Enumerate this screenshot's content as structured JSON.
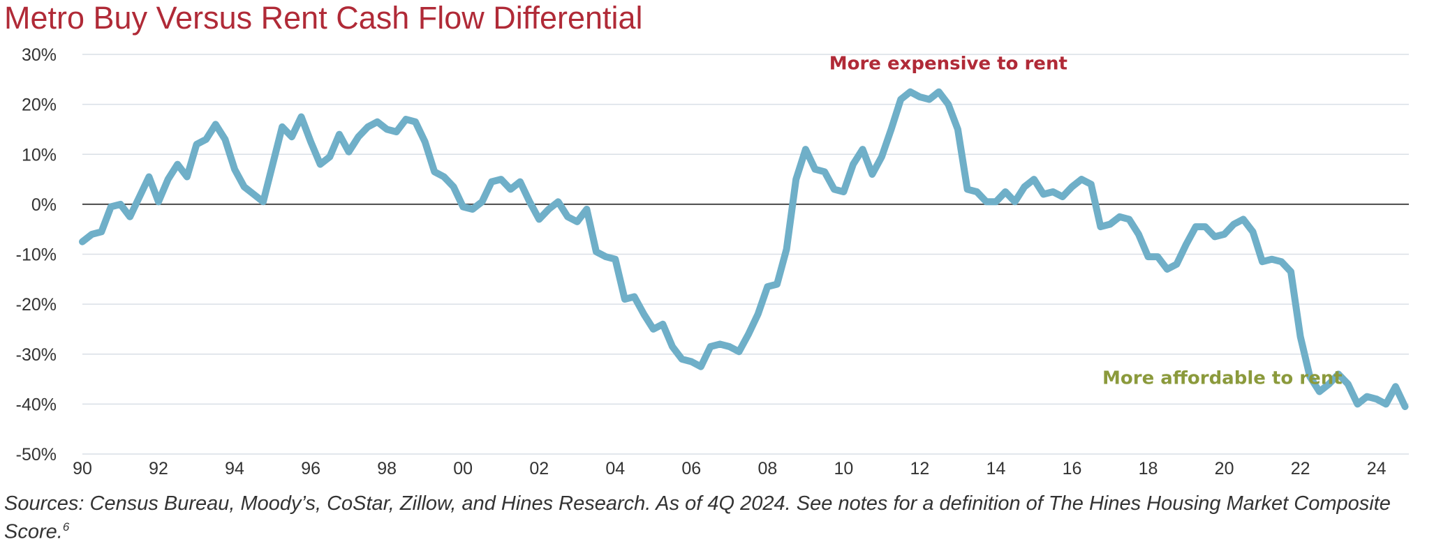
{
  "title": "Metro Buy Versus Rent Cash Flow Differential",
  "source_text": "Sources: Census Bureau, Moody’s, CoStar, Zillow, and Hines Research. As of 4Q 2024. See notes for a definition of The Hines Housing Market Composite Score.",
  "source_footnote": "6",
  "colors": {
    "title": "#b02a37",
    "line": "#6fafc8",
    "grid": "#d9dfe6",
    "zero": "#4a4a4a",
    "anno_top": "#b02a37",
    "anno_bottom": "#8b9a3c"
  },
  "chart_data": {
    "type": "line",
    "title": "Metro Buy Versus Rent Cash Flow Differential",
    "ylim": [
      -50,
      30
    ],
    "xlim": [
      1990,
      2024.85
    ],
    "grid": true,
    "yticks": [
      30,
      20,
      10,
      0,
      -10,
      -20,
      -30,
      -40,
      -50
    ],
    "ytick_labels": [
      "30%",
      "20%",
      "10%",
      "0%",
      "-10%",
      "-20%",
      "-30%",
      "-40%",
      "-50%"
    ],
    "xticks": [
      1990,
      1992,
      1994,
      1996,
      1998,
      2000,
      2002,
      2004,
      2006,
      2008,
      2010,
      2012,
      2014,
      2016,
      2018,
      2020,
      2022,
      2024
    ],
    "xtick_labels": [
      "90",
      "92",
      "94",
      "96",
      "98",
      "00",
      "02",
      "04",
      "06",
      "08",
      "10",
      "12",
      "14",
      "16",
      "18",
      "20",
      "22",
      "24"
    ],
    "annotations": [
      {
        "text": "More expensive to rent",
        "x": 2012.75,
        "y": 27
      },
      {
        "text": "More affordable to rent",
        "x": 2019.95,
        "y": -36
      }
    ],
    "series": [
      {
        "x": [
          1990.0,
          1990.25,
          1990.5,
          1990.75,
          1991.0,
          1991.25,
          1991.5,
          1991.75,
          1992.0,
          1992.25,
          1992.5,
          1992.75,
          1993.0,
          1993.25,
          1993.5,
          1993.75,
          1994.0,
          1994.25,
          1994.5,
          1994.75,
          1995.0,
          1995.25,
          1995.5,
          1995.75,
          1996.0,
          1996.25,
          1996.5,
          1996.75,
          1997.0,
          1997.25,
          1997.5,
          1997.75,
          1998.0,
          1998.25,
          1998.5,
          1998.75,
          1999.0,
          1999.25,
          1999.5,
          1999.75,
          2000.0,
          2000.25,
          2000.5,
          2000.75,
          2001.0,
          2001.25,
          2001.5,
          2001.75,
          2002.0,
          2002.25,
          2002.5,
          2002.75,
          2003.0,
          2003.25,
          2003.5,
          2003.75,
          2004.0,
          2004.25,
          2004.5,
          2004.75,
          2005.0,
          2005.25,
          2005.5,
          2005.75,
          2006.0,
          2006.25,
          2006.5,
          2006.75,
          2007.0,
          2007.25,
          2007.5,
          2007.75,
          2008.0,
          2008.25,
          2008.5,
          2008.75,
          2009.0,
          2009.25,
          2009.5,
          2009.75,
          2010.0,
          2010.25,
          2010.5,
          2010.75,
          2011.0,
          2011.25,
          2011.5,
          2011.75,
          2012.0,
          2012.25,
          2012.5,
          2012.75,
          2013.0,
          2013.25,
          2013.5,
          2013.75,
          2014.0,
          2014.25,
          2014.5,
          2014.75,
          2015.0,
          2015.25,
          2015.5,
          2015.75,
          2016.0,
          2016.25,
          2016.5,
          2016.75,
          2017.0,
          2017.25,
          2017.5,
          2017.75,
          2018.0,
          2018.25,
          2018.5,
          2018.75,
          2019.0,
          2019.25,
          2019.5,
          2019.75,
          2020.0,
          2020.25,
          2020.5,
          2020.75,
          2021.0,
          2021.25,
          2021.5,
          2021.75,
          2022.0,
          2022.25,
          2022.5,
          2022.75,
          2023.0,
          2023.25,
          2023.5,
          2023.75,
          2024.0,
          2024.25,
          2024.5,
          2024.75
        ],
        "y": [
          -7.5,
          -6.0,
          -5.5,
          -0.5,
          0.0,
          -2.5,
          1.5,
          5.5,
          0.5,
          5.0,
          8.0,
          5.5,
          12.0,
          13.0,
          16.0,
          13.0,
          7.0,
          3.5,
          2.0,
          0.5,
          8.0,
          15.5,
          13.5,
          17.5,
          12.5,
          8.0,
          9.5,
          14.0,
          10.5,
          13.5,
          15.5,
          16.5,
          15.0,
          14.5,
          17.0,
          16.5,
          12.5,
          6.5,
          5.5,
          3.5,
          -0.5,
          -1.0,
          0.5,
          4.5,
          5.0,
          3.0,
          4.5,
          0.5,
          -3.0,
          -1.0,
          0.5,
          -2.5,
          -3.5,
          -1.0,
          -9.5,
          -10.5,
          -11.0,
          -19.0,
          -18.5,
          -22.0,
          -25.0,
          -24.0,
          -28.5,
          -31.0,
          -31.5,
          -32.5,
          -28.5,
          -28.0,
          -28.5,
          -29.5,
          -26.0,
          -22.0,
          -16.5,
          -16.0,
          -9.0,
          5.0,
          11.0,
          7.0,
          6.5,
          3.0,
          2.5,
          8.0,
          11.0,
          6.0,
          9.5,
          15.0,
          21.0,
          22.5,
          21.5,
          21.0,
          22.5,
          20.0,
          15.0,
          3.0,
          2.5,
          0.5,
          0.5,
          2.5,
          0.5,
          3.5,
          5.0,
          2.0,
          2.5,
          1.5,
          3.5,
          5.0,
          4.0,
          -4.5,
          -4.0,
          -2.5,
          -3.0,
          -6.0,
          -10.5,
          -10.5,
          -13.0,
          -12.0,
          -8.0,
          -4.5,
          -4.5,
          -6.5,
          -6.0,
          -4.0,
          -3.0,
          -5.5,
          -11.5,
          -11.0,
          -11.5,
          -13.5,
          -26.5,
          -34.5,
          -37.5,
          -36.0,
          -34.0,
          -36.0,
          -40.0,
          -38.5,
          -39.0,
          -40.0,
          -36.5,
          -40.5
        ]
      }
    ]
  }
}
